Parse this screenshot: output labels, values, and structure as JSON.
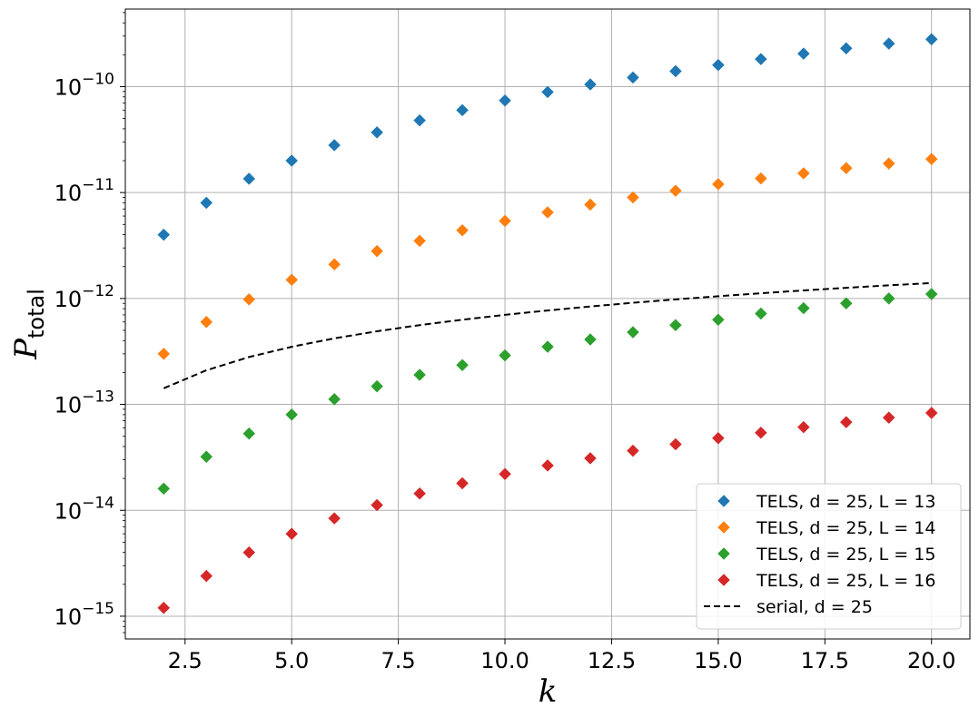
{
  "chart_data": {
    "type": "scatter",
    "xlabel": "k",
    "ylabel": "P",
    "ylabel_subscript": "total",
    "x_scale": "linear",
    "y_scale": "log",
    "xlim": [
      1.1,
      20.9
    ],
    "ylim": [
      6.1e-16,
      5.4e-10
    ],
    "grid": true,
    "legend_position": "lower right",
    "x_ticks": [
      2.5,
      5.0,
      7.5,
      10.0,
      12.5,
      15.0,
      17.5,
      20.0
    ],
    "x_tick_labels": [
      "2.5",
      "5.0",
      "7.5",
      "10.0",
      "12.5",
      "15.0",
      "17.5",
      "20.0"
    ],
    "y_ticks": [
      1e-15,
      1e-14,
      1e-13,
      1e-12,
      1e-11,
      1e-10
    ],
    "y_tick_labels": [
      {
        "base": "10",
        "exp": "−15"
      },
      {
        "base": "10",
        "exp": "−14"
      },
      {
        "base": "10",
        "exp": "−13"
      },
      {
        "base": "10",
        "exp": "−12"
      },
      {
        "base": "10",
        "exp": "−11"
      },
      {
        "base": "10",
        "exp": "−10"
      }
    ],
    "x": [
      2,
      3,
      4,
      5,
      6,
      7,
      8,
      9,
      10,
      11,
      12,
      13,
      14,
      15,
      16,
      17,
      18,
      19,
      20
    ],
    "series": [
      {
        "name": "TELS, d = 25, L = 13",
        "marker": "diamond",
        "color": "#1f77b4",
        "values": [
          4e-12,
          8e-12,
          1.35e-11,
          2e-11,
          2.8e-11,
          3.7e-11,
          4.8e-11,
          6e-11,
          7.4e-11,
          8.9e-11,
          1.05e-10,
          1.22e-10,
          1.4e-10,
          1.6e-10,
          1.82e-10,
          2.05e-10,
          2.3e-10,
          2.55e-10,
          2.8e-10
        ]
      },
      {
        "name": "TELS, d = 25, L = 14",
        "marker": "diamond",
        "color": "#ff7f0e",
        "values": [
          3e-13,
          6e-13,
          9.8e-13,
          1.5e-12,
          2.1e-12,
          2.8e-12,
          3.5e-12,
          4.4e-12,
          5.4e-12,
          6.5e-12,
          7.7e-12,
          9e-12,
          1.04e-11,
          1.2e-11,
          1.36e-11,
          1.52e-11,
          1.7e-11,
          1.88e-11,
          2.07e-11
        ]
      },
      {
        "name": "TELS, d = 25, L = 15",
        "marker": "diamond",
        "color": "#2ca02c",
        "values": [
          1.6e-14,
          3.2e-14,
          5.3e-14,
          8e-14,
          1.12e-13,
          1.48e-13,
          1.9e-13,
          2.35e-13,
          2.9e-13,
          3.5e-13,
          4.1e-13,
          4.8e-13,
          5.6e-13,
          6.3e-13,
          7.2e-13,
          8.1e-13,
          9e-13,
          1e-12,
          1.1e-12
        ]
      },
      {
        "name": "TELS, d = 25, L = 16",
        "marker": "diamond",
        "color": "#d62728",
        "values": [
          1.2e-15,
          2.4e-15,
          4e-15,
          6e-15,
          8.4e-15,
          1.12e-14,
          1.44e-14,
          1.8e-14,
          2.2e-14,
          2.65e-14,
          3.1e-14,
          3.65e-14,
          4.2e-14,
          4.8e-14,
          5.4e-14,
          6.1e-14,
          6.8e-14,
          7.5e-14,
          8.3e-14
        ]
      },
      {
        "name": "serial, d = 25",
        "marker": "dashed-line",
        "color": "#000000",
        "values": [
          1.42e-13,
          2.1e-13,
          2.8e-13,
          3.5e-13,
          4.2e-13,
          4.9e-13,
          5.6e-13,
          6.3e-13,
          7e-13,
          7.7e-13,
          8.4e-13,
          9.1e-13,
          9.8e-13,
          1.05e-12,
          1.12e-12,
          1.19e-12,
          1.26e-12,
          1.33e-12,
          1.4e-12
        ]
      }
    ]
  }
}
